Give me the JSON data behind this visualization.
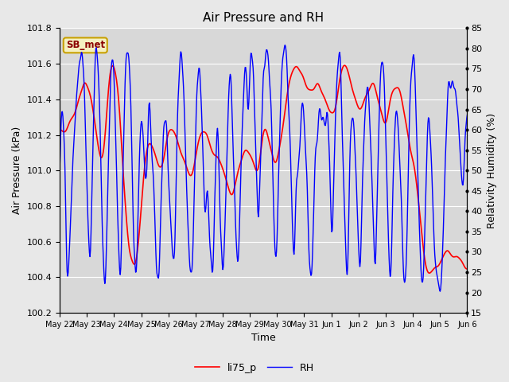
{
  "title": "Air Pressure and RH",
  "xlabel": "Time",
  "ylabel_left": "Air Pressure (kPa)",
  "ylabel_right": "Relativity Humidity (%)",
  "legend_labels": [
    "li75_p",
    "RH"
  ],
  "legend_colors": [
    "red",
    "blue"
  ],
  "pressure_ylim": [
    100.2,
    101.8
  ],
  "rh_ylim": [
    15,
    85
  ],
  "pressure_yticks": [
    100.2,
    100.4,
    100.6,
    100.8,
    101.0,
    101.2,
    101.4,
    101.6,
    101.8
  ],
  "rh_yticks": [
    15,
    20,
    25,
    30,
    35,
    40,
    45,
    50,
    55,
    60,
    65,
    70,
    75,
    80,
    85
  ],
  "xtick_labels": [
    "May 22",
    "May 23",
    "May 24",
    "May 25",
    "May 26",
    "May 27",
    "May 28",
    "May 29",
    "May 30",
    "May 31",
    "Jun 1",
    "Jun 2",
    "Jun 3",
    "Jun 4",
    "Jun 5",
    "Jun 6"
  ],
  "station_label": "SB_met",
  "fig_facecolor": "#e8e8e8",
  "plot_facecolor": "#d8d8d8",
  "line_color_pressure": "red",
  "line_color_rh": "blue",
  "grid_color": "#ffffff",
  "title_fontsize": 11,
  "label_fontsize": 9,
  "tick_fontsize": 8
}
